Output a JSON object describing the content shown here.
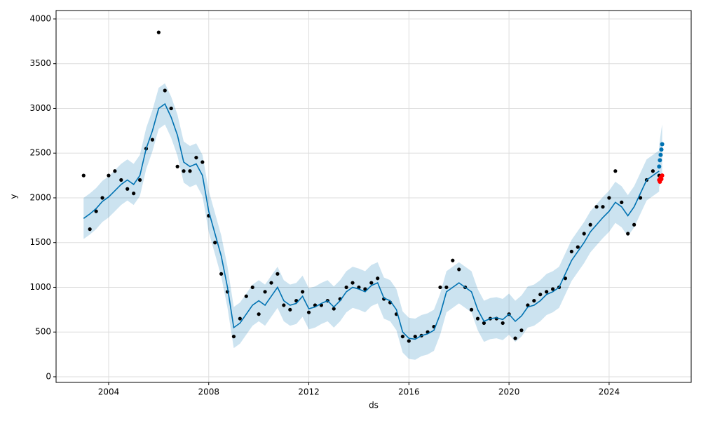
{
  "chart_data": {
    "type": "line",
    "xlabel": "ds",
    "ylabel": "y",
    "xlim": [
      2001.9,
      2027.28
    ],
    "ylim": [
      -63,
      4094
    ],
    "xticks": [
      2004,
      2008,
      2012,
      2016,
      2020,
      2024
    ],
    "yticks": [
      0,
      500,
      1000,
      1500,
      2000,
      2500,
      3000,
      3500,
      4000
    ],
    "grid": true,
    "x": [
      2003,
      2003.25,
      2003.5,
      2003.75,
      2004,
      2004.25,
      2004.5,
      2004.75,
      2005,
      2005.25,
      2005.5,
      2005.75,
      2006,
      2006.25,
      2006.5,
      2006.75,
      2007,
      2007.25,
      2007.5,
      2007.75,
      2008,
      2008.25,
      2008.5,
      2008.75,
      2009,
      2009.25,
      2009.5,
      2009.75,
      2010,
      2010.25,
      2010.5,
      2010.75,
      2011,
      2011.25,
      2011.5,
      2011.75,
      2012,
      2012.25,
      2012.5,
      2012.75,
      2013,
      2013.25,
      2013.5,
      2013.75,
      2014,
      2014.25,
      2014.5,
      2014.75,
      2015,
      2015.25,
      2015.5,
      2015.75,
      2016,
      2016.25,
      2016.5,
      2016.75,
      2017,
      2017.25,
      2017.5,
      2017.75,
      2018,
      2018.25,
      2018.5,
      2018.75,
      2019,
      2019.25,
      2019.5,
      2019.75,
      2020,
      2020.25,
      2020.5,
      2020.75,
      2021,
      2021.25,
      2021.5,
      2021.75,
      2022,
      2022.25,
      2022.5,
      2022.75,
      2023,
      2023.25,
      2023.5,
      2023.75,
      2024,
      2024.25,
      2024.5,
      2024.75,
      2025,
      2025.25,
      2025.5,
      2025.75,
      2026
    ],
    "series": [
      {
        "color": "#0072B2",
        "band_color": "#0072B2",
        "values": [
          1770,
          1820,
          1880,
          1960,
          2010,
          2080,
          2150,
          2200,
          2150,
          2250,
          2550,
          2750,
          3000,
          3050,
          2900,
          2700,
          2400,
          2350,
          2380,
          2250,
          1850,
          1600,
          1350,
          1000,
          550,
          600,
          700,
          800,
          850,
          800,
          900,
          1000,
          850,
          800,
          820,
          900,
          760,
          780,
          820,
          850,
          780,
          850,
          950,
          1000,
          980,
          950,
          1020,
          1050,
          880,
          850,
          750,
          500,
          430,
          420,
          460,
          480,
          520,
          700,
          950,
          1000,
          1050,
          1000,
          950,
          750,
          620,
          650,
          660,
          640,
          700,
          620,
          680,
          780,
          800,
          850,
          920,
          950,
          1000,
          1150,
          1300,
          1400,
          1500,
          1620,
          1700,
          1780,
          1850,
          1950,
          1900,
          1800,
          1900,
          2050,
          2200,
          2250,
          2300
        ],
        "lower": [
          1540,
          1590,
          1650,
          1730,
          1780,
          1850,
          1920,
          1970,
          1920,
          2020,
          2320,
          2520,
          2770,
          2820,
          2670,
          2470,
          2170,
          2120,
          2150,
          2020,
          1620,
          1370,
          1120,
          770,
          320,
          370,
          470,
          570,
          620,
          570,
          670,
          770,
          620,
          570,
          590,
          670,
          530,
          550,
          590,
          620,
          550,
          620,
          720,
          770,
          750,
          720,
          790,
          820,
          650,
          620,
          520,
          270,
          200,
          190,
          230,
          250,
          290,
          470,
          720,
          770,
          820,
          770,
          720,
          520,
          390,
          420,
          430,
          410,
          470,
          390,
          450,
          550,
          570,
          620,
          690,
          720,
          770,
          920,
          1070,
          1170,
          1270,
          1390,
          1470,
          1550,
          1620,
          1720,
          1670,
          1570,
          1670,
          1820,
          1970,
          2020,
          2070
        ],
        "upper": [
          2000,
          2050,
          2110,
          2190,
          2240,
          2310,
          2380,
          2430,
          2380,
          2480,
          2780,
          2980,
          3230,
          3280,
          3130,
          2930,
          2630,
          2580,
          2610,
          2480,
          2080,
          1830,
          1580,
          1230,
          780,
          830,
          930,
          1030,
          1080,
          1030,
          1130,
          1230,
          1080,
          1030,
          1050,
          1130,
          990,
          1010,
          1050,
          1080,
          1010,
          1080,
          1180,
          1230,
          1210,
          1180,
          1250,
          1280,
          1110,
          1080,
          980,
          730,
          660,
          650,
          690,
          710,
          750,
          930,
          1180,
          1230,
          1280,
          1230,
          1180,
          980,
          850,
          880,
          890,
          870,
          930,
          850,
          910,
          1010,
          1030,
          1080,
          1150,
          1180,
          1230,
          1380,
          1530,
          1630,
          1730,
          1850,
          1930,
          2010,
          2080,
          2180,
          2130,
          2030,
          2130,
          2280,
          2430,
          2480,
          2530
        ]
      }
    ],
    "scatter": {
      "color": "#000000",
      "values": [
        2250,
        1650,
        1850,
        2000,
        2250,
        2300,
        2200,
        2100,
        2050,
        2200,
        2550,
        2650,
        3850,
        3200,
        3000,
        2350,
        2300,
        2300,
        2450,
        2400,
        1800,
        1500,
        1150,
        950,
        450,
        650,
        900,
        1000,
        700,
        950,
        1050,
        1150,
        800,
        750,
        850,
        950,
        720,
        800,
        800,
        850,
        760,
        870,
        1000,
        1050,
        1000,
        980,
        1050,
        1100,
        870,
        830,
        700,
        450,
        400,
        450,
        460,
        500,
        560,
        1000,
        1000,
        1300,
        1200,
        1000,
        750,
        650,
        600,
        650,
        650,
        600,
        700,
        430,
        520,
        800,
        850,
        920,
        950,
        980,
        1000,
        1100,
        1400,
        1450,
        1600,
        1700,
        1900,
        1900,
        2000,
        2300,
        1950,
        1600,
        1700,
        2000,
        2200,
        2300,
        2250
      ]
    },
    "forecast": {
      "color": "#0072B2",
      "x": [
        2026.0,
        2026.03,
        2026.06,
        2026.09,
        2026.12
      ],
      "values": [
        2350,
        2420,
        2480,
        2540,
        2600
      ],
      "lower": [
        2120,
        2150,
        2170,
        2200,
        2230
      ],
      "upper": [
        2580,
        2650,
        2710,
        2770,
        2820
      ],
      "actual_color": "#ff0000",
      "actual": [
        2200,
        2180,
        2230,
        2210,
        2250
      ]
    }
  }
}
